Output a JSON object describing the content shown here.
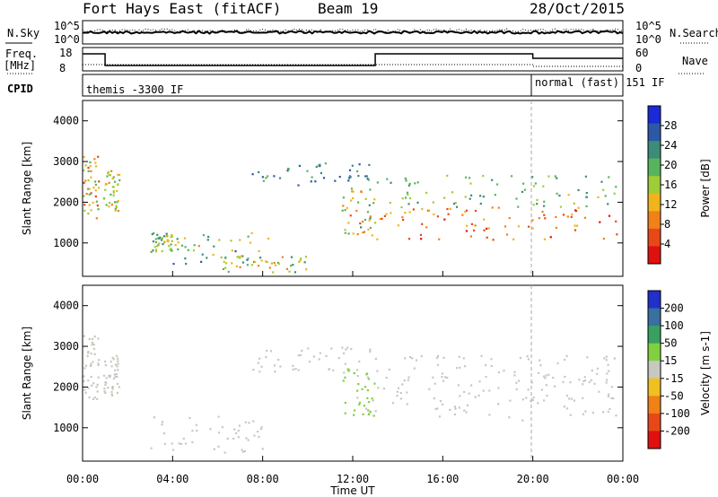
{
  "header": {
    "station": "Fort Hays East (fitACF)",
    "beam": "Beam 19",
    "date": "28/Oct/2015"
  },
  "status_panels": {
    "nsky_label": "N.Sky",
    "nsearch_label": "N.Search",
    "noise_ticks": [
      "10^5",
      "10^0"
    ],
    "freq_label_line1": "Freq.",
    "freq_label_line2": "[MHz]",
    "freq_ticks": [
      "18",
      "8"
    ],
    "nave_label": "Nave",
    "nave_ticks": [
      "60",
      "0"
    ],
    "cpid_label": "CPID",
    "cpid_segments": [
      {
        "label": "themis -3300 IF",
        "start_hour": 0
      },
      {
        "label": "normal (fast) 151 IF",
        "start_hour": 20
      }
    ]
  },
  "chart_data": [
    {
      "type": "heatmap",
      "title": "Power",
      "ylabel": "Slant Range [km]",
      "xlabel": "",
      "x_ticks": [
        "00:00",
        "04:00",
        "08:00",
        "12:00",
        "16:00",
        "20:00",
        "00:00"
      ],
      "x_range_hours": [
        0,
        24
      ],
      "y_range_km": [
        180,
        4500
      ],
      "y_ticks": [
        1000,
        2000,
        3000,
        4000
      ],
      "colorbar": {
        "label": "Power [dB]",
        "ticks": [
          4,
          8,
          12,
          16,
          20,
          24,
          28
        ],
        "colors": [
          "#1a2ad6",
          "#2c58a8",
          "#3c8c78",
          "#57b45e",
          "#a0cc38",
          "#f0b41c",
          "#f08018",
          "#e84818",
          "#e01010"
        ]
      },
      "scatter_regions": [
        {
          "t": [
            0.0,
            0.7
          ],
          "r": [
            1600,
            3200
          ],
          "v": [
            12,
            28
          ]
        },
        {
          "t": [
            0.9,
            1.6
          ],
          "r": [
            1800,
            2800
          ],
          "v": [
            10,
            22
          ]
        },
        {
          "t": [
            3.0,
            4.0
          ],
          "r": [
            800,
            1300
          ],
          "v": [
            8,
            20
          ]
        },
        {
          "t": [
            4.0,
            8.5
          ],
          "r": [
            500,
            1300
          ],
          "v": [
            6,
            22
          ]
        },
        {
          "t": [
            6.0,
            10.0
          ],
          "r": [
            300,
            700
          ],
          "v": [
            8,
            24
          ]
        },
        {
          "t": [
            7.5,
            13.0
          ],
          "r": [
            2400,
            3000
          ],
          "v": [
            4,
            14
          ]
        },
        {
          "t": [
            11.5,
            13.0
          ],
          "r": [
            1200,
            2400
          ],
          "v": [
            10,
            26
          ]
        },
        {
          "t": [
            13.0,
            23.7
          ],
          "r": [
            1100,
            1900
          ],
          "v": [
            18,
            30
          ]
        },
        {
          "t": [
            13.0,
            23.7
          ],
          "r": [
            1900,
            2700
          ],
          "v": [
            8,
            18
          ]
        }
      ]
    },
    {
      "type": "heatmap",
      "title": "Velocity",
      "ylabel": "Slant Range [km]",
      "xlabel": "Time UT",
      "x_ticks": [
        "00:00",
        "04:00",
        "08:00",
        "12:00",
        "16:00",
        "20:00",
        "00:00"
      ],
      "x_range_hours": [
        0,
        24
      ],
      "y_range_km": [
        180,
        4500
      ],
      "y_ticks": [
        1000,
        2000,
        3000,
        4000
      ],
      "colorbar": {
        "label": "Velocity [m s-1]",
        "ticks": [
          200,
          100,
          50,
          15,
          -15,
          -50,
          -100,
          -200
        ],
        "colors": [
          "#2030c8",
          "#3870a0",
          "#38a060",
          "#80d040",
          "#c8c8c0",
          "#f0c020",
          "#f08018",
          "#e84818",
          "#e01010"
        ]
      },
      "scatter_regions": [
        {
          "t": [
            0.0,
            0.7
          ],
          "r": [
            1700,
            3300
          ],
          "v": [
            -15,
            15
          ]
        },
        {
          "t": [
            0.9,
            1.6
          ],
          "r": [
            1800,
            2800
          ],
          "v": [
            -15,
            15
          ]
        },
        {
          "t": [
            3.0,
            8.5
          ],
          "r": [
            400,
            1300
          ],
          "v": [
            -15,
            15
          ]
        },
        {
          "t": [
            7.5,
            13.0
          ],
          "r": [
            2400,
            3000
          ],
          "v": [
            -15,
            15
          ]
        },
        {
          "t": [
            11.5,
            13.0
          ],
          "r": [
            1300,
            2500
          ],
          "v": [
            15,
            50
          ]
        },
        {
          "t": [
            13.0,
            23.7
          ],
          "r": [
            1200,
            2300
          ],
          "v": [
            -15,
            15
          ]
        },
        {
          "t": [
            13.0,
            23.7
          ],
          "r": [
            2300,
            2800
          ],
          "v": [
            -15,
            15
          ]
        }
      ]
    }
  ]
}
